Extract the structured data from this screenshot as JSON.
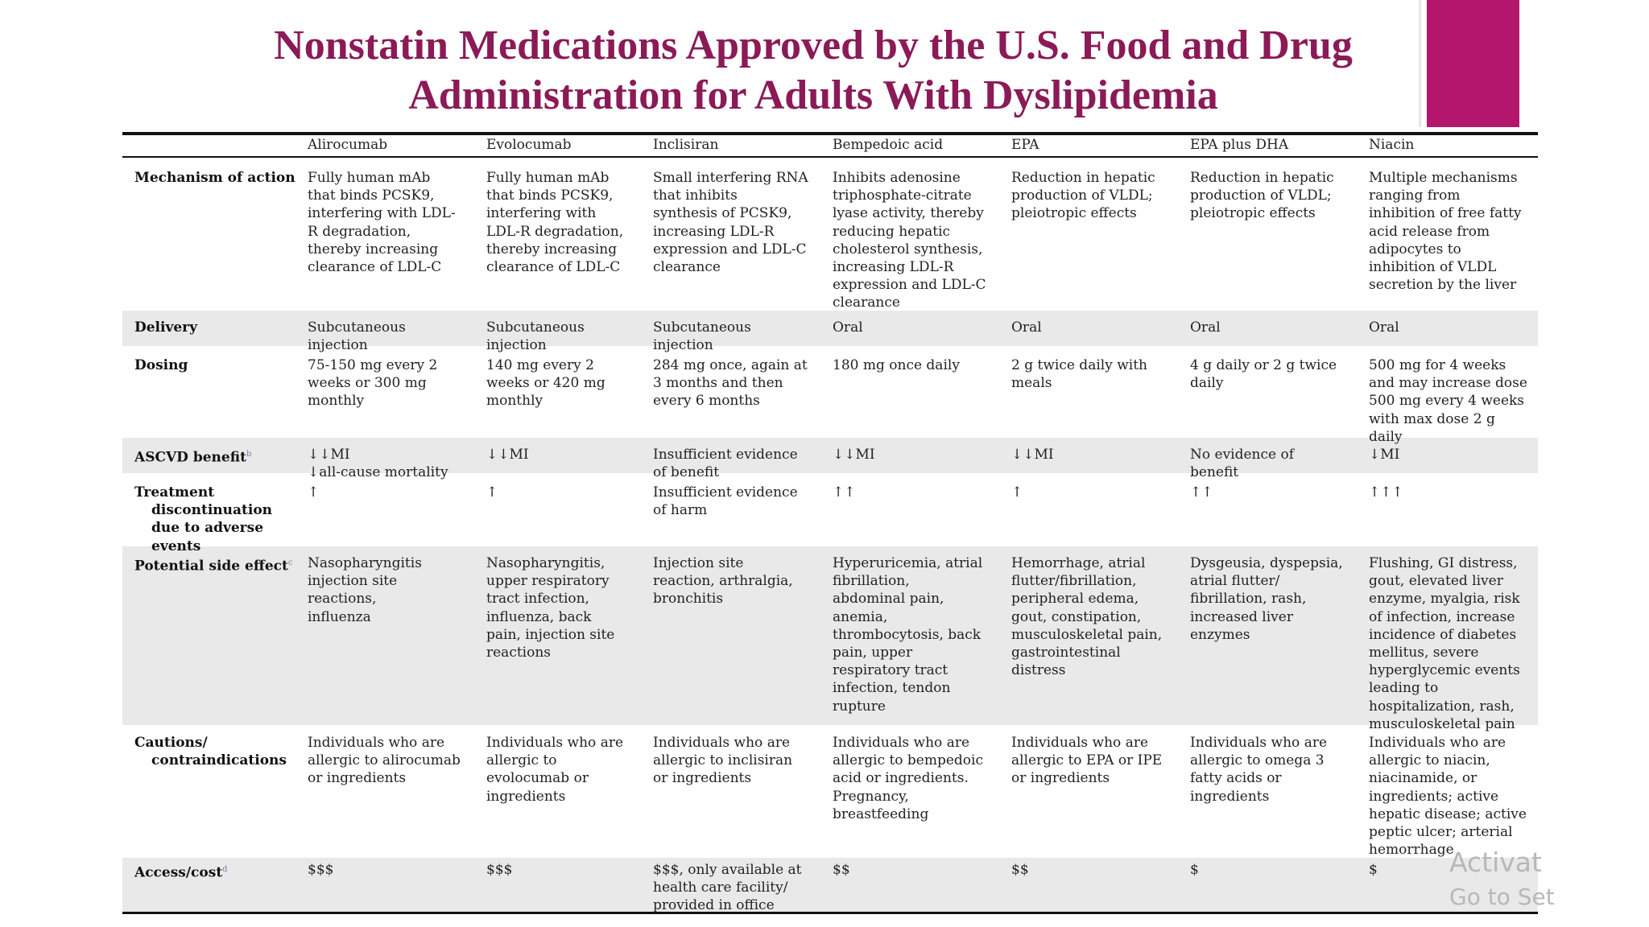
{
  "title": {
    "line1": "Nonstatin Medications Approved by the U.S. Food and Drug",
    "line2": "Administration for Adults With Dyslipidemia"
  },
  "colors": {
    "title": "#8b1a57",
    "accent_block": "#b4166e",
    "band": "#e9e9e9"
  },
  "table": {
    "headers": [
      "Alirocumab",
      "Evolocumab",
      "Inclisiran",
      "Bempedoic acid",
      "EPA",
      "EPA plus DHA",
      "Niacin"
    ],
    "rows": [
      {
        "label": [
          "Mechanism of action"
        ],
        "cells": [
          [
            "Fully human mAb",
            "that binds PCSK9,",
            "interfering with LDL-",
            "R degradation,",
            "thereby increasing",
            "clearance of LDL-C"
          ],
          [
            "Fully human mAb",
            "that binds PCSK9,",
            "interfering with",
            "LDL-R degradation,",
            "thereby increasing",
            "clearance of LDL-C"
          ],
          [
            "Small interfering RNA",
            "that inhibits",
            "synthesis of PCSK9,",
            "increasing LDL-R",
            "expression and LDL-C",
            "clearance"
          ],
          [
            "Inhibits adenosine",
            "triphosphate-citrate",
            "lyase activity, thereby",
            "reducing hepatic",
            "cholesterol synthesis,",
            "increasing LDL-R",
            "expression and LDL-C",
            "clearance"
          ],
          [
            "Reduction in hepatic",
            "production of VLDL;",
            "pleiotropic effects"
          ],
          [
            "Reduction in hepatic",
            "production of VLDL;",
            "pleiotropic effects"
          ],
          [
            "Multiple mechanisms",
            "ranging from",
            "inhibition of free fatty",
            "acid release from",
            "adipocytes to",
            "inhibition of VLDL",
            "secretion by the liver"
          ]
        ]
      },
      {
        "label": [
          "Delivery"
        ],
        "cells": [
          [
            "Subcutaneous",
            "injection"
          ],
          [
            "Subcutaneous",
            "injection"
          ],
          [
            "Subcutaneous",
            "injection"
          ],
          [
            "Oral"
          ],
          [
            "Oral"
          ],
          [
            "Oral"
          ],
          [
            "Oral"
          ]
        ]
      },
      {
        "label": [
          "Dosing"
        ],
        "cells": [
          [
            "75-150 mg every 2",
            "weeks or 300 mg",
            "monthly"
          ],
          [
            "140 mg every 2",
            "weeks or 420 mg",
            "monthly"
          ],
          [
            "284 mg once, again at",
            "3 months and then",
            "every 6 months"
          ],
          [
            "180 mg once daily"
          ],
          [
            "2 g twice daily with",
            "meals"
          ],
          [
            "4 g daily or 2 g twice",
            "daily"
          ],
          [
            "500 mg for 4 weeks",
            "and may increase dose",
            "500 mg every 4 weeks",
            "with max dose 2 g",
            "daily"
          ]
        ]
      },
      {
        "label": [
          "ASCVD benefit"
        ],
        "label_sup": "b",
        "cells": [
          [
            "↓↓MI",
            "↓all-cause mortality"
          ],
          [
            "↓↓MI"
          ],
          [
            "Insufficient evidence",
            "of benefit"
          ],
          [
            "↓↓MI"
          ],
          [
            "↓↓MI"
          ],
          [
            "No evidence of",
            "benefit"
          ],
          [
            "↓MI"
          ]
        ]
      },
      {
        "label": [
          "Treatment",
          "discontinuation",
          "due to adverse",
          "events"
        ],
        "cells": [
          [
            "↑"
          ],
          [
            "↑"
          ],
          [
            "Insufficient evidence",
            "of harm"
          ],
          [
            "↑↑"
          ],
          [
            "↑"
          ],
          [
            "↑↑"
          ],
          [
            "↑↑↑"
          ]
        ]
      },
      {
        "label": [
          "Potential side effect"
        ],
        "label_sup": "c",
        "cells": [
          [
            "Nasopharyngitis",
            "injection site",
            "reactions,",
            "influenza"
          ],
          [
            "Nasopharyngitis,",
            "upper respiratory",
            "tract infection,",
            "influenza, back",
            "pain, injection site",
            "reactions"
          ],
          [
            "Injection site",
            "reaction, arthralgia,",
            "bronchitis"
          ],
          [
            "Hyperuricemia, atrial",
            "fibrillation,",
            "abdominal pain,",
            "anemia,",
            "thrombocytosis, back",
            "pain, upper",
            "respiratory tract",
            "infection, tendon",
            "rupture"
          ],
          [
            "Hemorrhage, atrial",
            "flutter/fibrillation,",
            "peripheral edema,",
            "gout, constipation,",
            "musculoskeletal pain,",
            "gastrointestinal",
            "distress"
          ],
          [
            "Dysgeusia, dyspepsia,",
            "atrial flutter/",
            "fibrillation, rash,",
            "increased liver",
            "enzymes"
          ],
          [
            "Flushing, GI distress,",
            "gout, elevated liver",
            "enzyme, myalgia, risk",
            "of infection, increase",
            "incidence of diabetes",
            "mellitus, severe",
            "hyperglycemic events",
            "leading to",
            "hospitalization, rash,",
            "musculoskeletal pain"
          ]
        ]
      },
      {
        "label": [
          "Cautions/",
          "contraindications"
        ],
        "cells": [
          [
            "Individuals who are",
            "allergic to alirocumab",
            "or ingredients"
          ],
          [
            "Individuals who are",
            "allergic to",
            "evolocumab or",
            "ingredients"
          ],
          [
            "Individuals who are",
            "allergic to inclisiran",
            "or ingredients"
          ],
          [
            "Individuals who are",
            "allergic to bempedoic",
            "acid or ingredients.",
            "Pregnancy,",
            "breastfeeding"
          ],
          [
            "Individuals who are",
            "allergic to EPA or IPE",
            "or ingredients"
          ],
          [
            "Individuals who are",
            "allergic to omega 3",
            "fatty acids or",
            "ingredients"
          ],
          [
            "Individuals who are",
            "allergic to niacin,",
            "niacinamide, or",
            "ingredients; active",
            "hepatic disease; active",
            "peptic ulcer; arterial",
            "hemorrhage"
          ]
        ]
      },
      {
        "label": [
          "Access/cost"
        ],
        "label_sup": "d",
        "cells": [
          [
            "$$$"
          ],
          [
            "$$$"
          ],
          [
            "$$$, only available at",
            "health care facility/",
            "provided in office"
          ],
          [
            "$$"
          ],
          [
            "$$"
          ],
          [
            "$"
          ],
          [
            "$"
          ]
        ]
      }
    ]
  },
  "watermark": {
    "line1": "Activat",
    "line2": "Go to Set"
  }
}
